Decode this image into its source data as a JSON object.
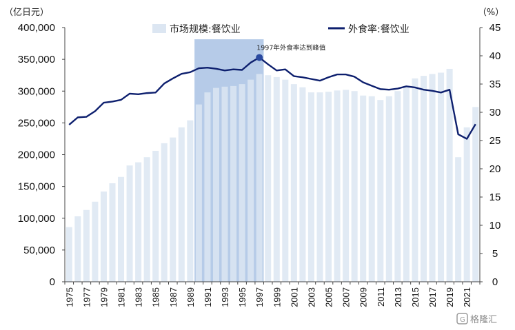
{
  "chart_data": {
    "type": "bar",
    "left_unit": "（亿日元）",
    "right_unit": "（%）",
    "years": [
      1975,
      1976,
      1977,
      1978,
      1979,
      1980,
      1981,
      1982,
      1983,
      1984,
      1985,
      1986,
      1987,
      1988,
      1989,
      1990,
      1991,
      1992,
      1993,
      1994,
      1995,
      1996,
      1997,
      1998,
      1999,
      2000,
      2001,
      2002,
      2003,
      2004,
      2005,
      2006,
      2007,
      2008,
      2009,
      2010,
      2011,
      2012,
      2013,
      2014,
      2015,
      2016,
      2017,
      2018,
      2019,
      2020,
      2021,
      2022
    ],
    "x_tick_labels": [
      "1975",
      "1977",
      "1979",
      "1981",
      "1983",
      "1985",
      "1987",
      "1989",
      "1991",
      "1993",
      "1995",
      "1997",
      "1999",
      "2001",
      "2003",
      "2005",
      "2007",
      "2009",
      "2011",
      "2013",
      "2015",
      "2017",
      "2019",
      "2021"
    ],
    "series": [
      {
        "name": "市场规模:餐饮业",
        "type": "bar",
        "axis": "left",
        "color": "#dce6f2",
        "values": [
          86000,
          103000,
          113000,
          126000,
          142000,
          155000,
          165000,
          183000,
          188000,
          196000,
          206000,
          218000,
          227000,
          243000,
          254000,
          279000,
          298000,
          305000,
          307000,
          308000,
          311000,
          318000,
          327000,
          325000,
          322000,
          318000,
          311000,
          306000,
          298000,
          298000,
          299000,
          301000,
          302000,
          300000,
          293000,
          292000,
          286000,
          292000,
          300000,
          306000,
          320000,
          324000,
          327000,
          329000,
          335000,
          196000,
          243000,
          275000
        ]
      },
      {
        "name": "外食率:餐饮业",
        "type": "line",
        "axis": "right",
        "color": "#0d1f6e",
        "values": [
          27.8,
          29.1,
          29.2,
          30.2,
          31.7,
          31.9,
          32.2,
          33.3,
          33.2,
          33.4,
          33.5,
          35.1,
          36.0,
          36.8,
          37.1,
          37.8,
          37.9,
          37.7,
          37.4,
          37.6,
          37.5,
          38.8,
          39.7,
          38.5,
          37.4,
          37.6,
          36.4,
          36.2,
          35.9,
          35.6,
          36.2,
          36.7,
          36.7,
          36.3,
          35.3,
          34.7,
          34.1,
          34.0,
          34.2,
          34.6,
          34.4,
          34.0,
          33.8,
          33.5,
          34.0,
          26.1,
          25.3,
          27.9
        ]
      }
    ],
    "left_ylim": [
      0,
      400000
    ],
    "left_ticks": [
      0,
      50000,
      100000,
      150000,
      200000,
      250000,
      300000,
      350000,
      400000
    ],
    "left_tick_labels": [
      "0",
      "50,000",
      "100,000",
      "150,000",
      "200,000",
      "250,000",
      "300,000",
      "350,000",
      "400,000"
    ],
    "right_ylim": [
      0,
      45
    ],
    "right_ticks": [
      0,
      5,
      10,
      15,
      20,
      25,
      30,
      35,
      40,
      45
    ],
    "right_tick_labels": [
      "0",
      "5",
      "10",
      "15",
      "20",
      "25",
      "30",
      "35",
      "40",
      "45"
    ],
    "highlight_band": {
      "from_year": 1990,
      "to_year": 1997,
      "color": "#7aa0d6"
    },
    "annotation": {
      "year": 1997,
      "series": "外食率:餐饮业",
      "text": "1997年外食率达到峰值"
    },
    "legend_position": "top",
    "grid": false
  },
  "watermark": {
    "text": "格隆汇"
  }
}
